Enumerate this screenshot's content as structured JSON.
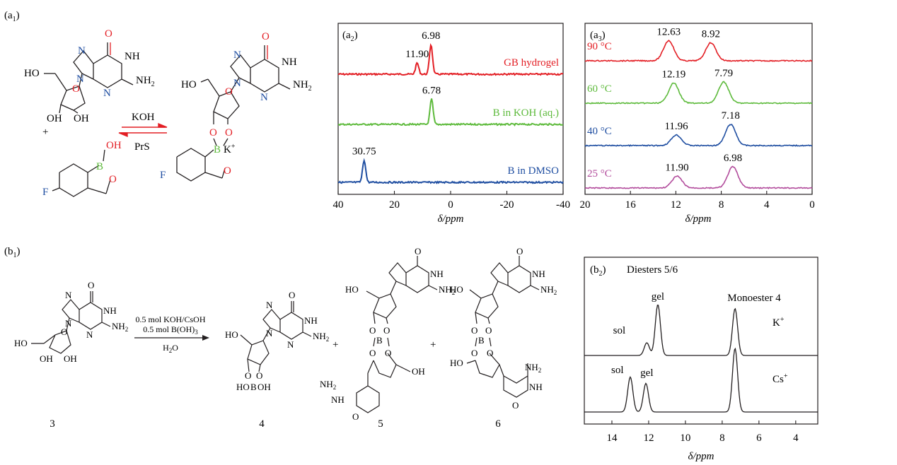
{
  "panel_labels": {
    "a1": {
      "main": "(a",
      "sub": "1",
      "close": ")"
    },
    "a2": {
      "main": "(a",
      "sub": "2",
      "close": ")"
    },
    "a3": {
      "main": "(a",
      "sub": "3",
      "close": ")"
    },
    "b1": {
      "main": "(b",
      "sub": "1",
      "close": ")"
    },
    "b2": {
      "main": "(b",
      "sub": "2",
      "close": ")"
    }
  },
  "scheme_a": {
    "reagent_forward": "KOH",
    "reagent_reverse": "PrS",
    "plus": "+",
    "counterion": "K",
    "counterion_charge": "+",
    "atoms": {
      "O": "O",
      "NH": "NH",
      "N": "N",
      "NH2_main": "NH",
      "NH2_sub": "2",
      "HO": "HO",
      "OH": "OH",
      "B": "B",
      "F": "F"
    }
  },
  "scheme_b": {
    "reagent_line1": "0.5 mol KOH/CsOH",
    "reagent_line2_main": "0.5 mol B(OH)",
    "reagent_line2_sub": "3",
    "solvent_main": "H",
    "solvent_sub": "2",
    "solvent_tail": "O",
    "plus": "+",
    "compound_numbers": [
      "3",
      "4",
      "5",
      "6"
    ]
  },
  "chart_a2": {
    "type": "line",
    "xlabel": "δ/ppm",
    "xlim": [
      40,
      -40
    ],
    "x_ticks": [
      40,
      20,
      0,
      -20,
      -40
    ],
    "series": [
      {
        "name": "GB hydrogel",
        "color": "#e31e24",
        "peaks": [
          {
            "x": 11.9,
            "label": "11.90",
            "height": 0.38
          },
          {
            "x": 6.98,
            "label": "6.98",
            "height": 1.0
          }
        ]
      },
      {
        "name": "B in KOH (aq.)",
        "color": "#5dba3b",
        "peaks": [
          {
            "x": 6.78,
            "label": "6.78",
            "height": 0.85
          }
        ]
      },
      {
        "name": "B in DMSO",
        "color": "#1f4ea1",
        "peaks": [
          {
            "x": 30.75,
            "label": "30.75",
            "height": 0.75
          }
        ]
      }
    ]
  },
  "chart_a3": {
    "type": "line",
    "xlabel": "δ/ppm",
    "xlim": [
      20,
      0
    ],
    "x_ticks": [
      20,
      16,
      12,
      8,
      4,
      0
    ],
    "series": [
      {
        "name": "90 °C",
        "color": "#e31e24",
        "peaks": [
          {
            "x": 12.63,
            "label": "12.63",
            "height": 0.95
          },
          {
            "x": 8.92,
            "label": "8.92",
            "height": 0.85
          }
        ]
      },
      {
        "name": "60 °C",
        "color": "#5dba3b",
        "peaks": [
          {
            "x": 12.19,
            "label": "12.19",
            "height": 0.95
          },
          {
            "x": 7.79,
            "label": "7.79",
            "height": 1.0
          }
        ]
      },
      {
        "name": "40 °C",
        "color": "#1f4ea1",
        "peaks": [
          {
            "x": 11.96,
            "label": "11.96",
            "height": 0.5
          },
          {
            "x": 7.18,
            "label": "7.18",
            "height": 1.0
          }
        ]
      },
      {
        "name": "25 °C",
        "color": "#b24c9c",
        "peaks": [
          {
            "x": 11.9,
            "label": "11.90",
            "height": 0.55
          },
          {
            "x": 6.98,
            "label": "6.98",
            "height": 1.0
          }
        ]
      }
    ]
  },
  "chart_b2": {
    "type": "line",
    "title": "Diesters 5/6",
    "xlabel": "δ/ppm",
    "xlim": [
      15.5,
      2.8
    ],
    "x_ticks": [
      14,
      12,
      10,
      8,
      6,
      4
    ],
    "annotations": {
      "monoester": "Monoester 4",
      "sol": "sol",
      "gel": "gel"
    },
    "series": [
      {
        "name": "K",
        "charge": "+",
        "color": "#231f20",
        "peaks": [
          {
            "x": 11.5,
            "height": 1.0
          },
          {
            "x": 12.1,
            "height": 0.25
          },
          {
            "x": 7.3,
            "height": 0.92
          }
        ]
      },
      {
        "name": "Cs",
        "charge": "+",
        "color": "#231f20",
        "peaks": [
          {
            "x": 13.0,
            "height": 0.55
          },
          {
            "x": 12.15,
            "height": 0.45
          },
          {
            "x": 7.3,
            "height": 1.0
          }
        ]
      }
    ]
  }
}
